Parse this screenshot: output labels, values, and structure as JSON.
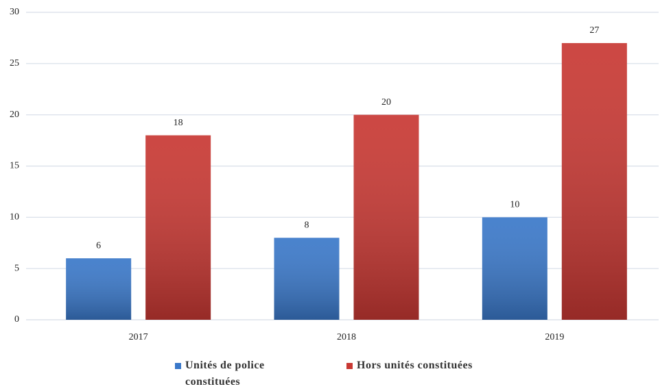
{
  "chart_data": {
    "type": "bar",
    "categories": [
      "2017",
      "2018",
      "2019"
    ],
    "series": [
      {
        "name": "Unités de police constituées",
        "color": "#3a78c9",
        "values": [
          6,
          8,
          10
        ]
      },
      {
        "name": "Hors unités constituées",
        "color": "#c83833",
        "values": [
          18,
          20,
          27
        ]
      }
    ],
    "ylim": [
      0,
      30
    ],
    "yticks": [
      0,
      5,
      10,
      15,
      20,
      25,
      30
    ],
    "grid": true
  }
}
